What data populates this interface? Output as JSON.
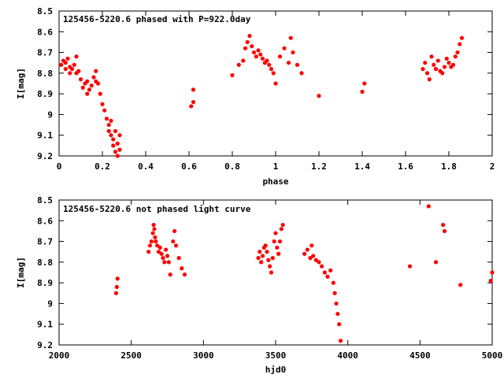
{
  "chart_data": [
    {
      "type": "scatter",
      "title": "125456-5220.6 phased with P=922.0day",
      "xlabel": "phase",
      "ylabel": "I[mag]",
      "xlim": [
        0,
        2
      ],
      "ylim": [
        9.2,
        8.5
      ],
      "y_inverted": true,
      "grid": false,
      "marker_color": "#ff0000",
      "x_ticks": [
        "0",
        "0.2",
        "0.4",
        "0.6",
        "0.8",
        "1",
        "1.2",
        "1.4",
        "1.6",
        "1.8",
        "2"
      ],
      "y_ticks": [
        "8.5",
        "8.6",
        "8.7",
        "8.8",
        "8.9",
        "9",
        "9.1",
        "9.2"
      ],
      "series": [
        {
          "x": [
            0.01,
            0.02,
            0.03,
            0.03,
            0.04,
            0.05,
            0.05,
            0.06,
            0.07,
            0.08,
            0.08,
            0.09,
            0.1,
            0.11,
            0.12,
            0.13,
            0.13,
            0.14,
            0.15,
            0.16,
            0.17,
            0.17,
            0.18,
            0.19,
            0.2,
            0.21,
            0.22,
            0.23,
            0.23,
            0.24,
            0.24,
            0.25,
            0.25,
            0.26,
            0.26,
            0.27,
            0.27,
            0.28,
            0.28,
            0.61,
            0.62,
            0.62,
            0.8,
            0.83,
            0.85,
            0.86,
            0.87,
            0.88,
            0.89,
            0.9,
            0.91,
            0.92,
            0.93,
            0.94,
            0.95,
            0.96,
            0.97,
            0.98,
            0.99,
            1.0,
            1.02,
            1.04,
            1.06,
            1.07,
            1.08,
            1.1,
            1.12,
            1.2,
            1.4,
            1.41,
            1.68,
            1.69,
            1.7,
            1.71,
            1.72,
            1.73,
            1.74,
            1.75,
            1.76,
            1.77,
            1.78,
            1.79,
            1.8,
            1.81,
            1.82,
            1.83,
            1.84,
            1.85,
            1.86
          ],
          "y": [
            8.76,
            8.74,
            8.78,
            8.75,
            8.73,
            8.77,
            8.8,
            8.78,
            8.76,
            8.8,
            8.72,
            8.79,
            8.83,
            8.87,
            8.85,
            8.9,
            8.84,
            8.88,
            8.86,
            8.82,
            8.79,
            8.84,
            8.85,
            8.9,
            8.95,
            8.98,
            9.02,
            9.05,
            9.08,
            9.03,
            9.1,
            9.12,
            9.15,
            9.08,
            9.18,
            9.14,
            9.2,
            9.17,
            9.1,
            8.96,
            8.94,
            8.88,
            8.81,
            8.76,
            8.74,
            8.68,
            8.65,
            8.62,
            8.67,
            8.7,
            8.72,
            8.69,
            8.71,
            8.73,
            8.75,
            8.74,
            8.76,
            8.78,
            8.8,
            8.85,
            8.72,
            8.68,
            8.75,
            8.63,
            8.7,
            8.76,
            8.8,
            8.91,
            8.89,
            8.85,
            8.78,
            8.75,
            8.8,
            8.83,
            8.72,
            8.76,
            8.78,
            8.74,
            8.79,
            8.8,
            8.77,
            8.73,
            8.75,
            8.77,
            8.76,
            8.72,
            8.7,
            8.66,
            8.63
          ]
        }
      ]
    },
    {
      "type": "scatter",
      "title": "125456-5220.6 not phased light curve",
      "xlabel": "hjd0",
      "ylabel": "I[mag]",
      "xlim": [
        2000,
        5000
      ],
      "ylim": [
        9.2,
        8.5
      ],
      "y_inverted": true,
      "grid": false,
      "marker_color": "#ff0000",
      "x_ticks": [
        "2000",
        "2500",
        "3000",
        "3500",
        "4000",
        "4500",
        "5000"
      ],
      "y_ticks": [
        "8.5",
        "8.6",
        "8.7",
        "8.8",
        "8.9",
        "9",
        "9.1",
        "9.2"
      ],
      "series": [
        {
          "x": [
            2395,
            2400,
            2405,
            2620,
            2630,
            2640,
            2650,
            2655,
            2660,
            2665,
            2670,
            2680,
            2690,
            2700,
            2710,
            2720,
            2730,
            2740,
            2750,
            2760,
            2770,
            2790,
            2800,
            2810,
            2830,
            2850,
            2870,
            3380,
            3390,
            3400,
            3410,
            3420,
            3430,
            3440,
            3450,
            3460,
            3470,
            3480,
            3490,
            3500,
            3510,
            3520,
            3530,
            3540,
            3550,
            3700,
            3720,
            3740,
            3750,
            3760,
            3780,
            3800,
            3820,
            3840,
            3860,
            3880,
            3900,
            3910,
            3920,
            3930,
            3940,
            3950,
            4430,
            4560,
            4610,
            4660,
            4670,
            4780,
            4990,
            5000
          ],
          "y": [
            8.95,
            8.92,
            8.88,
            8.75,
            8.72,
            8.7,
            8.66,
            8.62,
            8.64,
            8.68,
            8.7,
            8.72,
            8.75,
            8.73,
            8.76,
            8.78,
            8.8,
            8.74,
            8.77,
            8.8,
            8.86,
            8.7,
            8.65,
            8.72,
            8.78,
            8.83,
            8.86,
            8.78,
            8.75,
            8.8,
            8.77,
            8.73,
            8.72,
            8.75,
            8.79,
            8.82,
            8.85,
            8.78,
            8.7,
            8.66,
            8.73,
            8.76,
            8.7,
            8.64,
            8.62,
            8.76,
            8.74,
            8.78,
            8.72,
            8.77,
            8.79,
            8.8,
            8.82,
            8.85,
            8.87,
            8.84,
            8.9,
            8.95,
            9.0,
            9.05,
            9.1,
            9.18,
            8.82,
            8.53,
            8.8,
            8.62,
            8.65,
            8.91,
            8.89,
            8.85
          ]
        }
      ]
    }
  ]
}
